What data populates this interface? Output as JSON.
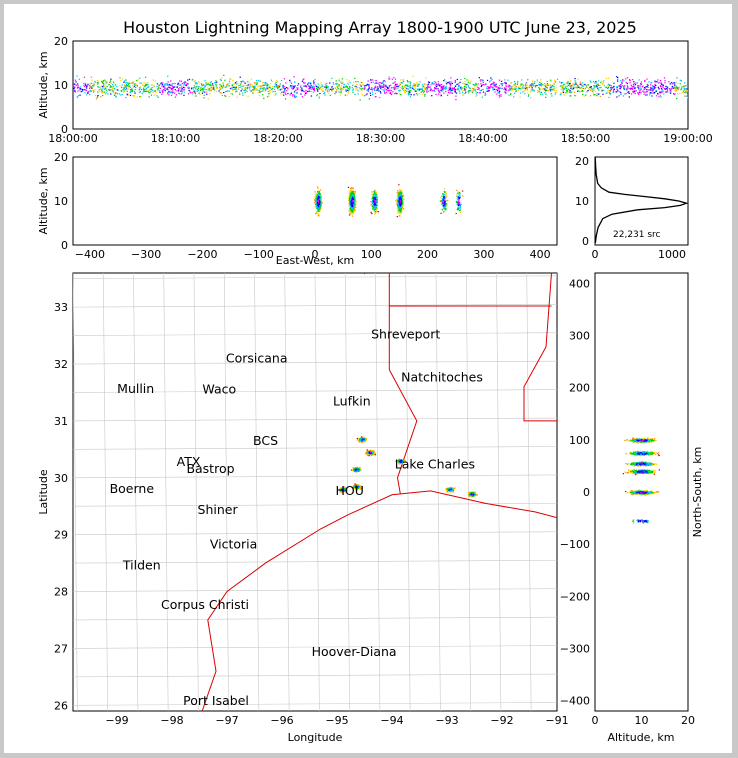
{
  "title": "Houston Lightning Mapping Array 1800-1900 UTC June 23, 2025",
  "chart_data": [
    {
      "panel": "time-altitude",
      "type": "scatter",
      "ylabel": "Altitude, km",
      "xlim": [
        "18:00:00",
        "19:00:00"
      ],
      "ylim": [
        0,
        20
      ],
      "xticks": [
        "18:00:00",
        "18:10:00",
        "18:20:00",
        "18:30:00",
        "18:40:00",
        "18:50:00",
        "19:00:00"
      ],
      "yticks": [
        "0",
        "10",
        "20"
      ],
      "series": [
        {
          "x_min": [
            0,
            10,
            22,
            30,
            36,
            41,
            54,
            57
          ],
          "y_km": [
            9.5,
            9.5,
            10,
            10,
            10,
            10,
            10.5,
            11
          ]
        }
      ]
    },
    {
      "panel": "east-west-altitude",
      "type": "scatter",
      "xlabel": "East-West, km",
      "ylabel": "Altitude, km",
      "xlim": [
        -430,
        430
      ],
      "ylim": [
        0,
        20
      ],
      "xticks": [
        "−400",
        "−300",
        "−200",
        "−100",
        "0",
        "100",
        "200",
        "300",
        "400"
      ],
      "yticks": [
        "0",
        "10",
        "20"
      ],
      "clusters_x_km": [
        5,
        65,
        105,
        150,
        228,
        255
      ]
    },
    {
      "panel": "altitude-histogram",
      "type": "line",
      "xlim": [
        0,
        1200
      ],
      "ylim": [
        0,
        20
      ],
      "xticks": [
        "0",
        "1000"
      ],
      "yticks": [
        "0",
        "10",
        "20"
      ],
      "annotation": "22,231 src",
      "altitude_km": [
        0.5,
        2,
        4,
        6,
        7,
        8,
        8.5,
        9,
        9.5,
        10,
        10.5,
        11,
        11.5,
        12,
        13,
        14,
        16,
        18,
        20
      ],
      "sources": [
        5,
        15,
        40,
        100,
        220,
        550,
        900,
        1100,
        1180,
        1080,
        900,
        650,
        380,
        180,
        80,
        35,
        15,
        8,
        3
      ]
    },
    {
      "panel": "plan-view",
      "type": "scatter",
      "xlabel": "Longitude",
      "ylabel": "Latitude",
      "xlim": [
        -99.8,
        -91.0
      ],
      "ylim": [
        25.9,
        33.6
      ],
      "xticks": [
        "−99",
        "−98",
        "−97",
        "−96",
        "−95",
        "−94",
        "−93",
        "−92",
        "−91"
      ],
      "yticks": [
        "26",
        "27",
        "28",
        "29",
        "30",
        "31",
        "32",
        "33"
      ],
      "cities": [
        {
          "name": "Shreveport",
          "lon": -93.75,
          "lat": 32.52,
          "color": "#000000"
        },
        {
          "name": "Corsicana",
          "lon": -96.46,
          "lat": 32.1,
          "color": "#000000"
        },
        {
          "name": "Natchitoches",
          "lon": -93.09,
          "lat": 31.76,
          "color": "#000000"
        },
        {
          "name": "Mullin",
          "lon": -98.66,
          "lat": 31.56,
          "color": "#f58c3c"
        },
        {
          "name": "Waco",
          "lon": -97.14,
          "lat": 31.55,
          "color": "#000000"
        },
        {
          "name": "Lufkin",
          "lon": -94.73,
          "lat": 31.34,
          "color": "#000000"
        },
        {
          "name": "BCS",
          "lon": -96.3,
          "lat": 30.65,
          "color": "#550000"
        },
        {
          "name": "ATX",
          "lon": -97.7,
          "lat": 30.28,
          "color": "#f58c3c"
        },
        {
          "name": "Bastrop",
          "lon": -97.3,
          "lat": 30.15,
          "color": "#000000"
        },
        {
          "name": "Lake Charles",
          "lon": -93.22,
          "lat": 30.23,
          "color": "#000000"
        },
        {
          "name": "Boerne",
          "lon": -98.73,
          "lat": 29.8,
          "color": "#000000"
        },
        {
          "name": "HOU",
          "lon": -94.77,
          "lat": 29.77,
          "color": "#f58c3c"
        },
        {
          "name": "Shiner",
          "lon": -97.17,
          "lat": 29.43,
          "color": "#000000"
        },
        {
          "name": "Victoria",
          "lon": -96.88,
          "lat": 28.83,
          "color": "#000000"
        },
        {
          "name": "Tilden",
          "lon": -98.55,
          "lat": 28.46,
          "color": "#000000"
        },
        {
          "name": "Corpus Christi",
          "lon": -97.4,
          "lat": 27.76,
          "color": "#000000"
        },
        {
          "name": "Hoover-Diana",
          "lon": -94.69,
          "lat": 26.94,
          "color": "#0000cc"
        },
        {
          "name": "Port Isabel",
          "lon": -97.2,
          "lat": 26.08,
          "color": "#000000"
        }
      ],
      "storm_clusters": [
        {
          "lon": -94.55,
          "lat": 30.68
        },
        {
          "lon": -94.4,
          "lat": 30.45
        },
        {
          "lon": -94.65,
          "lat": 30.15
        },
        {
          "lon": -93.85,
          "lat": 30.3
        },
        {
          "lon": -94.65,
          "lat": 29.85
        },
        {
          "lon": -94.9,
          "lat": 29.8
        },
        {
          "lon": -92.95,
          "lat": 29.8
        },
        {
          "lon": -92.55,
          "lat": 29.72
        }
      ]
    },
    {
      "panel": "altitude-north-south",
      "type": "scatter",
      "xlabel": "Altitude, km",
      "ylabel": "North-South, km",
      "xlim": [
        0,
        20
      ],
      "ylim": [
        -420,
        420
      ],
      "xticks": [
        "0",
        "10",
        "20"
      ],
      "yticks": [
        "−400",
        "−300",
        "−200",
        "−100",
        "0",
        "100",
        "200",
        "300",
        "400"
      ],
      "clusters_y_km": [
        100,
        75,
        55,
        40,
        0,
        -55
      ]
    }
  ]
}
